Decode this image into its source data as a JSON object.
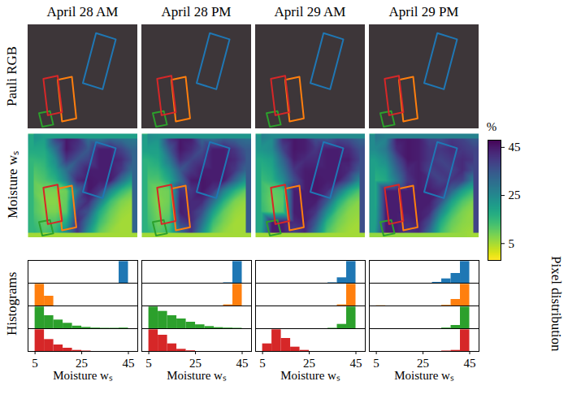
{
  "chart_data": {
    "type": "panel_grid",
    "column_titles": [
      "April 28 AM",
      "April 28 PM",
      "April 29 AM",
      "April 29 PM"
    ],
    "row_labels": [
      "Pauli RGB",
      "Moisture wₛ",
      "Histograms"
    ],
    "right_label": "Pixel distribution",
    "regions": {
      "colors": [
        "#1f77b4",
        "#ff7f0e",
        "#2ca02c",
        "#d62728"
      ]
    },
    "moisture": {
      "type": "heatmap",
      "color": "viridis",
      "colorbar": {
        "label": "%",
        "range": [
          -2,
          48
        ],
        "ticks": [
          5,
          25,
          45
        ]
      },
      "cells": [
        [
          [
            22,
            20,
            38,
            45,
            42,
            30,
            28,
            32,
            30,
            28
          ],
          [
            18,
            18,
            30,
            45,
            40,
            34,
            44,
            44,
            38,
            32
          ],
          [
            15,
            16,
            24,
            40,
            35,
            38,
            44,
            44,
            42,
            35
          ],
          [
            12,
            14,
            20,
            30,
            38,
            44,
            44,
            44,
            40,
            30
          ],
          [
            10,
            12,
            16,
            26,
            42,
            45,
            44,
            44,
            30,
            20
          ],
          [
            10,
            8,
            8,
            9,
            30,
            45,
            40,
            25,
            15,
            10
          ],
          [
            12,
            7,
            7,
            10,
            36,
            42,
            28,
            14,
            8,
            6
          ],
          [
            12,
            8,
            8,
            11,
            40,
            35,
            18,
            10,
            6,
            5
          ],
          [
            14,
            10,
            12,
            18,
            42,
            28,
            14,
            8,
            5,
            5
          ],
          [
            16,
            12,
            15,
            24,
            40,
            22,
            10,
            6,
            5,
            5
          ]
        ],
        [
          [
            24,
            22,
            40,
            45,
            44,
            32,
            30,
            34,
            32,
            30
          ],
          [
            20,
            20,
            34,
            45,
            42,
            36,
            44,
            44,
            40,
            34
          ],
          [
            16,
            18,
            28,
            42,
            38,
            40,
            44,
            44,
            42,
            36
          ],
          [
            14,
            15,
            22,
            34,
            40,
            44,
            44,
            44,
            40,
            32
          ],
          [
            12,
            12,
            18,
            30,
            44,
            45,
            44,
            44,
            32,
            22
          ],
          [
            12,
            8,
            9,
            42,
            40,
            45,
            40,
            26,
            16,
            10
          ],
          [
            12,
            7,
            9,
            44,
            42,
            42,
            30,
            16,
            8,
            6
          ],
          [
            13,
            8,
            10,
            44,
            42,
            36,
            20,
            10,
            6,
            5
          ],
          [
            14,
            9,
            12,
            38,
            42,
            30,
            14,
            8,
            5,
            5
          ],
          [
            16,
            11,
            14,
            30,
            40,
            24,
            10,
            6,
            5,
            5
          ]
        ],
        [
          [
            26,
            24,
            42,
            45,
            44,
            36,
            34,
            38,
            36,
            32
          ],
          [
            22,
            24,
            38,
            45,
            44,
            40,
            44,
            44,
            42,
            36
          ],
          [
            18,
            20,
            32,
            44,
            42,
            42,
            44,
            44,
            44,
            38
          ],
          [
            16,
            18,
            28,
            40,
            44,
            44,
            44,
            44,
            42,
            34
          ],
          [
            14,
            16,
            24,
            36,
            44,
            45,
            44,
            44,
            36,
            24
          ],
          [
            14,
            10,
            12,
            44,
            44,
            45,
            42,
            30,
            18,
            12
          ],
          [
            14,
            9,
            11,
            44,
            44,
            44,
            34,
            18,
            10,
            7
          ],
          [
            15,
            10,
            12,
            44,
            44,
            40,
            24,
            12,
            7,
            6
          ],
          [
            16,
            44,
            44,
            42,
            44,
            34,
            16,
            9,
            6,
            5
          ],
          [
            18,
            44,
            44,
            38,
            42,
            28,
            12,
            7,
            5,
            5
          ]
        ],
        [
          [
            28,
            26,
            44,
            45,
            44,
            38,
            36,
            40,
            38,
            34
          ],
          [
            24,
            28,
            42,
            45,
            44,
            40,
            40,
            42,
            40,
            38
          ],
          [
            20,
            24,
            36,
            45,
            44,
            40,
            38,
            40,
            42,
            40
          ],
          [
            18,
            20,
            32,
            42,
            44,
            38,
            40,
            38,
            42,
            36
          ],
          [
            16,
            18,
            28,
            40,
            44,
            42,
            38,
            40,
            38,
            26
          ],
          [
            16,
            44,
            44,
            44,
            44,
            44,
            42,
            32,
            20,
            14
          ],
          [
            16,
            44,
            44,
            44,
            44,
            44,
            36,
            20,
            12,
            8
          ],
          [
            17,
            44,
            44,
            44,
            44,
            42,
            26,
            14,
            8,
            6
          ],
          [
            18,
            44,
            44,
            42,
            44,
            36,
            18,
            10,
            7,
            6
          ],
          [
            20,
            44,
            44,
            40,
            42,
            30,
            14,
            8,
            6,
            5
          ]
        ]
      ]
    },
    "histograms": {
      "type": "bar",
      "xlabel": "Moisture wₛ",
      "bins": [
        5,
        9,
        13,
        17,
        21,
        25,
        29,
        33,
        37,
        41,
        45
      ],
      "xlim": [
        2,
        49
      ],
      "xticks": [
        5,
        25,
        45
      ],
      "ylim": [
        0,
        1.05
      ],
      "tick_labels": "x",
      "panels": [
        {
          "series": [
            {
              "color": "#1f77b4",
              "values": [
                0,
                0,
                0,
                0,
                0,
                0,
                0,
                0,
                0,
                1
              ]
            },
            {
              "color": "#ff7f0e",
              "values": [
                1,
                0.45,
                0,
                0,
                0,
                0,
                0,
                0,
                0,
                0
              ]
            },
            {
              "color": "#2ca02c",
              "values": [
                1,
                0.6,
                0.4,
                0.25,
                0.12,
                0.06,
                0.03,
                0.02,
                0.02,
                0.03
              ]
            },
            {
              "color": "#d62728",
              "values": [
                1,
                0.55,
                0.3,
                0.15,
                0.05,
                0.02,
                0,
                0,
                0,
                0
              ]
            }
          ]
        },
        {
          "series": [
            {
              "color": "#1f77b4",
              "values": [
                0,
                0,
                0,
                0,
                0,
                0,
                0,
                0,
                0.02,
                1
              ]
            },
            {
              "color": "#ff7f0e",
              "values": [
                0,
                0,
                0,
                0,
                0,
                0,
                0,
                0,
                0.05,
                1
              ]
            },
            {
              "color": "#2ca02c",
              "values": [
                1,
                0.8,
                0.6,
                0.45,
                0.3,
                0.18,
                0.1,
                0.05,
                0.03,
                0.02
              ]
            },
            {
              "color": "#d62728",
              "values": [
                1,
                0.75,
                0.35,
                0.1,
                0.03,
                0,
                0,
                0,
                0,
                0
              ]
            }
          ]
        },
        {
          "series": [
            {
              "color": "#1f77b4",
              "values": [
                0,
                0,
                0,
                0,
                0,
                0,
                0,
                0.02,
                0.25,
                1
              ]
            },
            {
              "color": "#ff7f0e",
              "values": [
                0,
                0,
                0,
                0,
                0,
                0,
                0,
                0,
                0.05,
                1
              ]
            },
            {
              "color": "#2ca02c",
              "values": [
                0,
                0,
                0,
                0,
                0,
                0,
                0,
                0.02,
                0.2,
                1
              ]
            },
            {
              "color": "#d62728",
              "values": [
                0.35,
                1,
                0.6,
                0.2,
                0.05,
                0,
                0,
                0,
                0,
                0
              ]
            }
          ]
        },
        {
          "series": [
            {
              "color": "#1f77b4",
              "values": [
                0,
                0,
                0,
                0,
                0,
                0,
                0.04,
                0.2,
                0.45,
                1
              ]
            },
            {
              "color": "#ff7f0e",
              "values": [
                0.01,
                0,
                0,
                0,
                0,
                0,
                0,
                0.03,
                0.3,
                1
              ]
            },
            {
              "color": "#2ca02c",
              "values": [
                0,
                0,
                0,
                0,
                0,
                0,
                0,
                0.03,
                0.15,
                1
              ]
            },
            {
              "color": "#d62728",
              "values": [
                0,
                0,
                0,
                0,
                0,
                0,
                0,
                0.02,
                0.05,
                1
              ]
            }
          ]
        }
      ]
    }
  }
}
